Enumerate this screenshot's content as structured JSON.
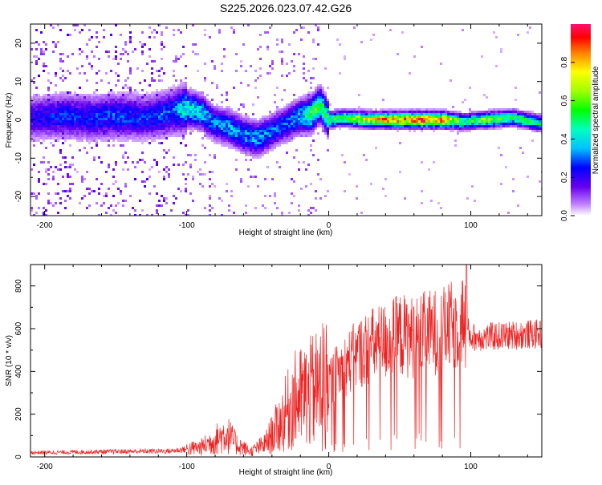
{
  "figure": {
    "title": "S225.2026.023.07.42.G26"
  },
  "chart_data": [
    {
      "type": "heatmap",
      "name": "spectrogram",
      "xlabel": "Height of straight line (km)",
      "ylabel": "Frequency (Hz)",
      "xlim": [
        -210,
        150
      ],
      "ylim": [
        -25,
        25
      ],
      "xticks": [
        -200,
        -100,
        0,
        100
      ],
      "yticks": [
        -20,
        -10,
        0,
        10,
        20
      ],
      "colorbar": {
        "label": "Normalized spectral amplitude",
        "range": [
          0,
          1
        ],
        "ticks": [
          0.0,
          0.2,
          0.4,
          0.6,
          0.8
        ]
      },
      "ridge": {
        "note": "approximate frequency of maximum amplitude vs height",
        "x": [
          -210,
          -190,
          -170,
          -150,
          -130,
          -110,
          -100,
          -90,
          -80,
          -70,
          -60,
          -50,
          -40,
          -30,
          -20,
          -12,
          -6,
          0,
          10,
          30,
          60,
          80,
          95,
          110,
          130,
          150
        ],
        "freq_hz": [
          0.5,
          1,
          0.5,
          1,
          0.5,
          2,
          3,
          2,
          -1,
          -2,
          -4,
          -5,
          -3,
          -1,
          1,
          1.5,
          4,
          0,
          0.5,
          0,
          0,
          0,
          -0.5,
          0,
          0.5,
          -1
        ],
        "amplitude": [
          0.2,
          0.25,
          0.25,
          0.28,
          0.25,
          0.3,
          0.45,
          0.4,
          0.3,
          0.35,
          0.33,
          0.35,
          0.3,
          0.3,
          0.35,
          0.55,
          0.55,
          0.5,
          0.55,
          0.7,
          0.9,
          0.85,
          0.45,
          0.6,
          0.5,
          0.45
        ]
      }
    },
    {
      "type": "line",
      "name": "snr",
      "xlabel": "Height of straight line (km)",
      "ylabel": "SNR (10 * v/v)",
      "xlim": [
        -210,
        150
      ],
      "ylim": [
        0,
        900
      ],
      "xticks": [
        -200,
        -100,
        0,
        100
      ],
      "yticks": [
        0,
        200,
        400,
        600,
        800
      ],
      "color": "#ee2222",
      "envelope": {
        "note": "approximate mean SNR level vs height (signal oscillates strongly around it)",
        "x": [
          -210,
          -150,
          -110,
          -90,
          -80,
          -72,
          -65,
          -55,
          -45,
          -35,
          -25,
          -15,
          -5,
          0,
          10,
          20,
          30,
          40,
          50,
          60,
          70,
          80,
          90,
          95,
          97,
          100,
          110,
          130,
          150
        ],
        "y": [
          20,
          25,
          28,
          45,
          80,
          110,
          60,
          25,
          60,
          150,
          260,
          290,
          330,
          350,
          420,
          480,
          520,
          540,
          570,
          560,
          580,
          590,
          620,
          650,
          600,
          560,
          560,
          570,
          575
        ]
      },
      "peak": {
        "x": 97,
        "y": 900
      }
    }
  ],
  "colors": {
    "line": "#ee2222",
    "axis": "#000000"
  }
}
